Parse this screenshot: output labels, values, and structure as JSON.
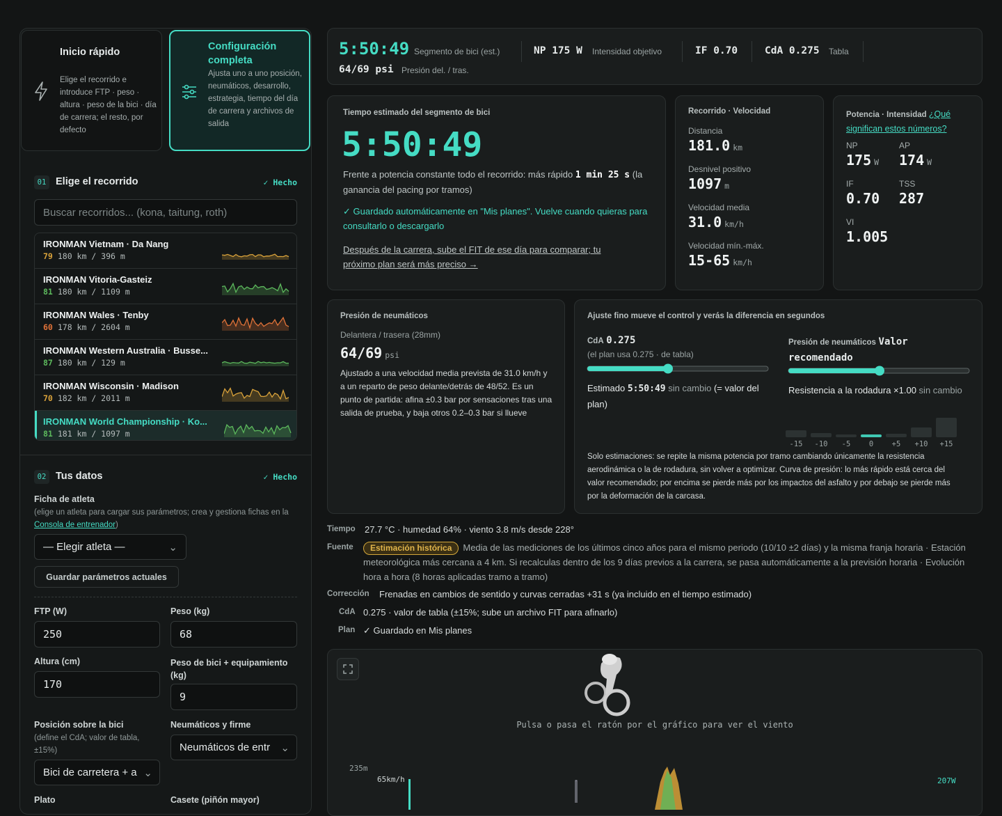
{
  "mode_cards": [
    {
      "title": "Inicio rápido",
      "desc": "Elige el recorrido e introduce FTP · peso · altura · peso de la bici · día de carrera; el resto, por defecto"
    },
    {
      "title": "Configuración completa",
      "desc": "Ajusta uno a uno posición, neumáticos, desarrollo, estrategia, tiempo del día de carrera y archivos de salida"
    }
  ],
  "step1": {
    "num": "01",
    "title": "Elige el recorrido",
    "status": "✓ Hecho",
    "search_placeholder": "Buscar recorridos... (kona, taitung, roth)"
  },
  "courses": [
    {
      "name": "IRONMAN Vietnam · Da Nang",
      "score": 79,
      "stats": "180 km / 396 m",
      "color": "#d9a23a"
    },
    {
      "name": "IRONMAN Vitoria-Gasteiz",
      "score": 81,
      "stats": "180 km / 1109 m",
      "color": "#5cb85c"
    },
    {
      "name": "IRONMAN Wales · Tenby",
      "score": 60,
      "stats": "178 km / 2604 m",
      "color": "#e07238"
    },
    {
      "name": "IRONMAN Western Australia · Busse...",
      "score": 87,
      "stats": "180 km / 129 m",
      "color": "#5cb85c"
    },
    {
      "name": "IRONMAN Wisconsin · Madison",
      "score": 70,
      "stats": "182 km / 2011 m",
      "color": "#d9a23a"
    },
    {
      "name": "IRONMAN World Championship · Ko...",
      "score": 81,
      "stats": "181 km / 1097 m",
      "color": "#5cb85c"
    }
  ],
  "step2": {
    "num": "02",
    "title": "Tus datos",
    "status": "✓ Hecho",
    "athlete_label": "Ficha de atleta",
    "athlete_help_pre": "(elige un atleta para cargar sus parámetros; crea y gestiona fichas en la ",
    "athlete_help_link": "Consola de entrenador",
    "athlete_help_post": ")",
    "athlete_select": "— Elegir atleta —",
    "save_button": "Guardar parámetros actuales",
    "ftp_label": "FTP  (W)",
    "ftp": "250",
    "weight_label": "Peso (kg)",
    "weight": "68",
    "height_label": "Altura (cm)",
    "height": "170",
    "bike_label": "Peso de bici + equipamiento (kg)",
    "bike": "9",
    "position_label": "Posición sobre la bici",
    "position_help": "(define el CdA; valor de tabla, ±15%)",
    "position": "Bici de carretera + a",
    "tyres_label": "Neumáticos y firme",
    "tyres": "Neumáticos de entr",
    "chainring_label": "Plato",
    "cassette_label": "Casete (piñón mayor)"
  },
  "summary": {
    "time": "5:50:49",
    "time_label": "Segmento de bici (est.)",
    "np": "NP 175 W",
    "np_label": "Intensidad objetivo",
    "if": "IF 0.70",
    "cda": "CdA 0.275",
    "cda_label": "Tabla",
    "pressure": "64/69 psi",
    "pressure_label": "Presión del. / tras."
  },
  "time_card": {
    "title": "Tiempo estimado del segmento de bici",
    "time": "5:50:49",
    "text_pre": "Frente a potencia constante todo el recorrido: más rápido ",
    "text_bold": "1 min 25 s",
    "text_post": " (la ganancia del pacing por tramos)",
    "saved": "✓ Guardado automáticamente en \"Mis planes\". Vuelve cuando quieras para consultarlo o descargarlo",
    "fit_link": "Después de la carrera, sube el FIT de ese día para comparar; tu próximo plan será más preciso →"
  },
  "route_card": {
    "title": "Recorrido · Velocidad",
    "items": [
      {
        "label": "Distancia",
        "value": "181.0",
        "unit": "km"
      },
      {
        "label": "Desnivel positivo",
        "value": "1097",
        "unit": "m"
      },
      {
        "label": "Velocidad media",
        "value": "31.0",
        "unit": "km/h"
      },
      {
        "label": "Velocidad mín.-máx.",
        "value": "15-65",
        "unit": "km/h"
      }
    ]
  },
  "power_card": {
    "title": "Potencia · Intensidad",
    "link": "¿Qué significan estos números?",
    "items": [
      {
        "label": "NP",
        "value": "175",
        "unit": "W"
      },
      {
        "label": "AP",
        "value": "174",
        "unit": "W"
      },
      {
        "label": "IF",
        "value": "0.70"
      },
      {
        "label": "TSS",
        "value": "287"
      },
      {
        "label": "VI",
        "value": "1.005"
      }
    ]
  },
  "tyre_card": {
    "title": "Presión de neumáticos",
    "sub": "Delantera / trasera (28mm)",
    "value": "64/69",
    "unit": "psi",
    "text": "Ajustado a una velocidad media prevista de 31.0 km/h y a un reparto de peso delante/detrás de 48/52. Es un punto de partida: afina ±0.3 bar por sensaciones tras una salida de prueba, y baja otros 0.2–0.3 bar si llueve"
  },
  "tune_card": {
    "title": "Ajuste fino mueve el control y verás la diferencia en segundos",
    "cda_label": "CdA",
    "cda_value": "0.275",
    "cda_note": "(el plan usa 0.275 · de tabla)",
    "est_pre": "Estimado ",
    "est_time": "5:50:49",
    "est_mid": " sin cambio",
    "est_post": " (= valor del plan)",
    "pressure_label": "Presión de neumáticos",
    "pressure_value": "Valor recomendado",
    "rr_pre": "Resistencia a la rodadura ×1.00",
    "rr_post": " sin cambio",
    "bars": {
      "labels": [
        "-15",
        "-10",
        "-5",
        "0",
        "+5",
        "+10",
        "+15"
      ],
      "values": [
        10,
        6,
        4,
        4,
        5,
        14,
        28
      ],
      "highlight": 3
    },
    "note": "Solo estimaciones: se repite la misma potencia por tramo cambiando únicamente la resistencia aerodinámica o la de rodadura, sin volver a optimizar. Curva de presión: lo más rápido está cerca del valor recomendado; por encima se pierde más por los impactos del asfalto y por debajo se pierde más por la deformación de la carcasa."
  },
  "info": {
    "weather_key": "Tiempo",
    "weather": "27.7 °C · humedad 64% · viento 3.8 m/s desde 228°",
    "source_key": "Fuente",
    "source_badge": "Estimación histórica",
    "source": "Media de las mediciones de los últimos cinco años para el mismo periodo (10/10 ±2 días) y la misma franja horaria · Estación meteorológica más cercana a 4 km. Si recalculas dentro de los 9 días previos a la carrera, se pasa automáticamente a la previsión horaria · Evolución hora a hora (8 horas aplicadas tramo a tramo)",
    "correction_key": "Corrección",
    "correction": "Frenadas en cambios de sentido y curvas cerradas +31 s (ya incluido en el tiempo estimado)",
    "cda_key": "CdA",
    "cda": "0.275 · valor de tabla (±15%; sube un archivo FIT para afinarlo)",
    "plan_key": "Plan",
    "plan": "✓ Guardado en Mis planes"
  },
  "chart_panel": {
    "hint": "Pulsa o pasa el ratón por el gráfico para ver el viento",
    "elev_label": "235m",
    "speed_label": "65km/h",
    "power_label": "207W"
  }
}
